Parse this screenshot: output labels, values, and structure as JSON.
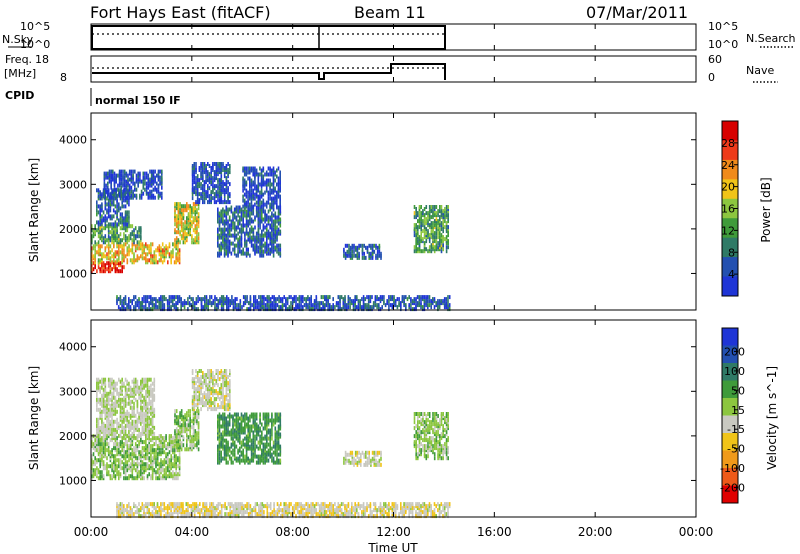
{
  "header": {
    "station": "Fort Hays East (fitACF)",
    "beam": "Beam 11",
    "date": "07/Mar/2011"
  },
  "top_panels": {
    "nsky_label": "N.Sky",
    "nsearch_label": "N.Search",
    "noise_ticks": [
      "10^5",
      "10^0"
    ],
    "freq_label_1": "Freq.",
    "freq_label_2": "[MHz]",
    "freq_ticks": [
      "18",
      "8"
    ],
    "nave_ticks": [
      "60",
      "0"
    ],
    "nave_label": "Nave",
    "cpid_label": "CPID",
    "cpid_value": "normal 150 IF"
  },
  "colors": {
    "power": [
      "#1f35d6",
      "#2350b0",
      "#2f7a66",
      "#3f9b3a",
      "#8cc63f",
      "#f0c419",
      "#f08a1a",
      "#ee3a1a",
      "#d70000"
    ],
    "velocity": [
      "#1f35d6",
      "#2350b0",
      "#2f7a66",
      "#3f9b3a",
      "#8cc63f",
      "#c9c9c1",
      "#f0c419",
      "#f09a1a",
      "#ee5a1a",
      "#e00000"
    ]
  },
  "chart_data": [
    {
      "type": "heatmap",
      "name": "power",
      "xlabel": "",
      "ylabel": "Slant Range [km]",
      "xlim": [
        "00:00",
        "24:00"
      ],
      "ylim": [
        180,
        4600
      ],
      "yticks": [
        1000,
        2000,
        3000,
        4000
      ],
      "colorbar": {
        "label": "Power [dB]",
        "ticks": [
          4,
          8,
          12,
          16,
          20,
          24,
          28
        ],
        "range": [
          0,
          32
        ]
      },
      "regions": [
        {
          "t0": 0.0,
          "t1": 1.3,
          "r0": 1050,
          "r1": 1250,
          "value": 28
        },
        {
          "t0": 0.0,
          "t1": 3.5,
          "r0": 1250,
          "r1": 1700,
          "value": 20
        },
        {
          "t0": 0.0,
          "t1": 2.0,
          "r0": 1700,
          "r1": 2100,
          "value": 12
        },
        {
          "t0": 0.2,
          "t1": 1.5,
          "r0": 2100,
          "r1": 2900,
          "value": 6
        },
        {
          "t0": 0.5,
          "t1": 2.8,
          "r0": 2700,
          "r1": 3300,
          "value": 4
        },
        {
          "t0": 3.3,
          "t1": 4.3,
          "r0": 1700,
          "r1": 2600,
          "value": 18
        },
        {
          "t0": 4.0,
          "t1": 5.5,
          "r0": 2600,
          "r1": 3500,
          "value": 4
        },
        {
          "t0": 5.0,
          "t1": 7.5,
          "r0": 1400,
          "r1": 2500,
          "value": 6
        },
        {
          "t0": 6.0,
          "t1": 7.5,
          "r0": 2500,
          "r1": 3400,
          "value": 4
        },
        {
          "t0": 10.0,
          "t1": 11.5,
          "r0": 1350,
          "r1": 1650,
          "value": 6
        },
        {
          "t0": 12.8,
          "t1": 14.2,
          "r0": 1500,
          "r1": 2500,
          "value": 12
        },
        {
          "t0": 1.0,
          "t1": 14.2,
          "r0": 200,
          "r1": 500,
          "value": 5
        }
      ]
    },
    {
      "type": "heatmap",
      "name": "velocity",
      "xlabel": "Time UT",
      "ylabel": "Slant Range [km]",
      "xlim": [
        "00:00",
        "24:00"
      ],
      "ylim": [
        180,
        4600
      ],
      "xticks": [
        "00:00",
        "04:00",
        "08:00",
        "12:00",
        "16:00",
        "20:00",
        "00:00"
      ],
      "yticks": [
        1000,
        2000,
        3000,
        4000
      ],
      "colorbar": {
        "label": "Velocity [m s^-1]",
        "ticks": [
          200,
          100,
          50,
          15,
          -15,
          -50,
          -100,
          -200
        ]
      },
      "regions": [
        {
          "t0": 0.0,
          "t1": 3.5,
          "r0": 1050,
          "r1": 2000,
          "value": 0
        },
        {
          "t0": 0.2,
          "t1": 2.5,
          "r0": 2000,
          "r1": 3300,
          "value": -20
        },
        {
          "t0": 3.3,
          "t1": 4.3,
          "r0": 1700,
          "r1": 2600,
          "value": 0
        },
        {
          "t0": 4.0,
          "t1": 5.5,
          "r0": 2600,
          "r1": 3500,
          "value": -30
        },
        {
          "t0": 5.0,
          "t1": 7.5,
          "r0": 1400,
          "r1": 2500,
          "value": 40
        },
        {
          "t0": 10.0,
          "t1": 11.5,
          "r0": 1350,
          "r1": 1650,
          "value": -30
        },
        {
          "t0": 12.8,
          "t1": 14.2,
          "r0": 1500,
          "r1": 2500,
          "value": 0
        },
        {
          "t0": 1.0,
          "t1": 14.2,
          "r0": 200,
          "r1": 500,
          "value": -40
        }
      ]
    }
  ]
}
